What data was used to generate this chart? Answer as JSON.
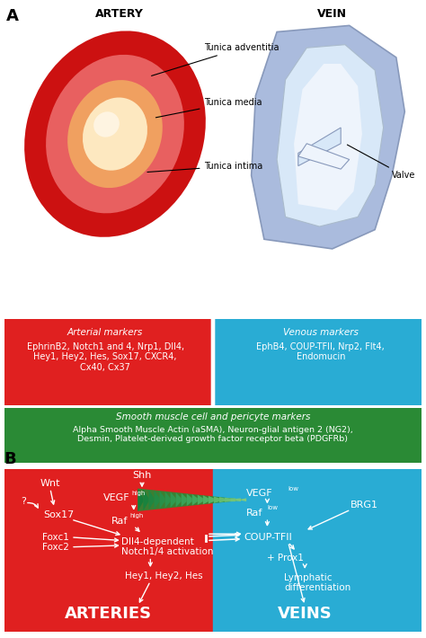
{
  "fig_width": 4.74,
  "fig_height": 7.1,
  "dpi": 100,
  "bg_color": "#ffffff",
  "red_color": "#e02020",
  "blue_color": "#29acd4",
  "green_color": "#2a8a35",
  "white": "#ffffff",
  "black": "#000000",
  "artery_outer": "#cc1111",
  "artery_mid": "#e86060",
  "artery_inner": "#f0a060",
  "artery_lumen": "#fde8c0",
  "vein_outer": "#aabbdd",
  "vein_inner": "#d8e8f8",
  "vein_lightest": "#eef4fc",
  "green_tri_dark": "#1a6622",
  "green_tri_light": "#aaddaa",
  "panel_a_label": "A",
  "panel_b_label": "B",
  "artery_title": "ARTERY",
  "vein_title": "VEIN",
  "ann_adventitia": "Tunica adventitia",
  "ann_media": "Tunica media",
  "ann_intima": "Tunica intima",
  "ann_valve": "Valve",
  "box_arterial_title": "Arterial markers",
  "box_arterial_text": "EphrinB2, Notch1 and 4, Nrp1, Dll4,\nHey1, Hey2, Hes, Sox17, CXCR4,\nCx40, Cx37",
  "box_venous_title": "Venous markers",
  "box_venous_text": "EphB4, COUP-TFII, Nrp2, Flt4,\nEndomucin",
  "box_smooth_title": "Smooth muscle cell and pericyte markers",
  "box_smooth_text": "Alpha Smooth Muscle Actin (aSMA), Neuron-glial antigen 2 (NG2),\nDesmin, Platelet-derived growth factor receptor beta (PDGFRb)",
  "lbl_arteries": "ARTERIES",
  "lbl_veins": "VEINS"
}
